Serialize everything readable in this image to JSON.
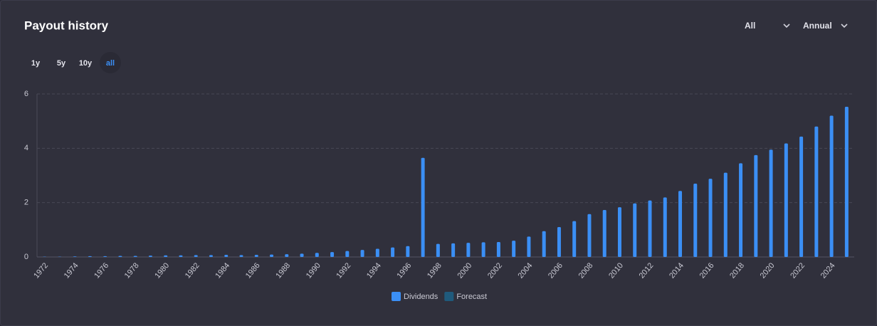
{
  "title": "Payout history",
  "controls": {
    "period": "All",
    "frequency": "Annual",
    "ranges": [
      "1y",
      "5y",
      "10y",
      "all"
    ]
  },
  "chart_data": {
    "type": "bar",
    "categories": [
      "1972",
      null,
      "1974",
      null,
      "1976",
      null,
      "1978",
      null,
      "1980",
      null,
      "1982",
      null,
      "1984",
      null,
      "1986",
      null,
      "1988",
      null,
      "1990",
      null,
      "1992",
      null,
      "1994",
      null,
      "1996",
      null,
      "1998",
      null,
      "2000",
      null,
      "2002",
      null,
      "2004",
      null,
      "2006",
      null,
      "2008",
      null,
      "2010",
      null,
      "2012",
      null,
      "2014",
      null,
      "2016",
      null,
      "2018",
      null,
      "2020",
      null,
      "2022",
      null,
      "2024",
      null
    ],
    "series": [
      {
        "name": "Dividends",
        "color": "#3b8ff5",
        "values": [
          0.01,
          0.01,
          0.02,
          0.03,
          0.03,
          0.04,
          0.04,
          0.05,
          0.06,
          0.06,
          0.07,
          0.07,
          0.08,
          0.07,
          0.08,
          0.09,
          0.1,
          0.12,
          0.15,
          0.18,
          0.22,
          0.26,
          0.3,
          0.35,
          0.4,
          3.65,
          0.48,
          0.5,
          0.52,
          0.54,
          0.55,
          0.6,
          0.75,
          0.95,
          1.1,
          1.32,
          1.58,
          1.73,
          1.83,
          1.97,
          2.08,
          2.19,
          2.43,
          2.7,
          2.88,
          3.1,
          3.45,
          3.75,
          3.95,
          4.18,
          4.43,
          4.8,
          5.2,
          5.53
        ]
      },
      {
        "name": "Forecast",
        "color": "#1f5a7c",
        "values": [
          null,
          null,
          null,
          null,
          null,
          null,
          null,
          null,
          null,
          null,
          null,
          null,
          null,
          null,
          null,
          null,
          null,
          null,
          null,
          null,
          null,
          null,
          null,
          null,
          null,
          null,
          null,
          null,
          null,
          null,
          null,
          null,
          null,
          null,
          null,
          null,
          null,
          null,
          null,
          null,
          null,
          null,
          null,
          null,
          null,
          null,
          null,
          null,
          null,
          null,
          null,
          null,
          null,
          null
        ]
      }
    ],
    "ylim": [
      0,
      6
    ],
    "yticks": [
      0,
      2,
      4,
      6
    ],
    "grid": true,
    "legend": "bottom"
  }
}
